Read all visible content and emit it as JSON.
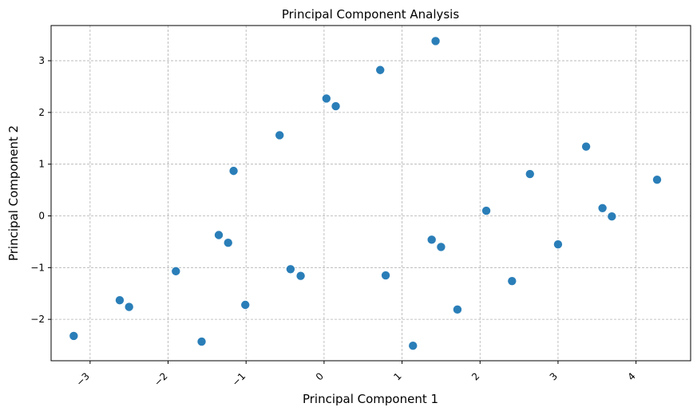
{
  "chart_data": {
    "type": "scatter",
    "title": "Principal Component Analysis",
    "xlabel": "Principal Component 1",
    "ylabel": "Principal Component 2",
    "xlim": [
      -3.5,
      4.7
    ],
    "ylim": [
      -2.8,
      3.68
    ],
    "xticks": [
      -3,
      -2,
      -1,
      0,
      1,
      2,
      3,
      4
    ],
    "xtick_labels": [
      "−3",
      "−2",
      "−1",
      "0",
      "1",
      "2",
      "3",
      "4"
    ],
    "yticks": [
      -2,
      -1,
      0,
      1,
      2,
      3
    ],
    "ytick_labels": [
      "−2",
      "−1",
      "0",
      "1",
      "2",
      "3"
    ],
    "grid": true,
    "color": "#1f77b4",
    "points": [
      {
        "x": -3.21,
        "y": -2.32
      },
      {
        "x": -2.62,
        "y": -1.63
      },
      {
        "x": -2.5,
        "y": -1.76
      },
      {
        "x": -1.9,
        "y": -1.07
      },
      {
        "x": -1.57,
        "y": -2.43
      },
      {
        "x": -1.35,
        "y": -0.37
      },
      {
        "x": -1.23,
        "y": -0.52
      },
      {
        "x": -1.16,
        "y": 0.87
      },
      {
        "x": -1.01,
        "y": -1.72
      },
      {
        "x": -0.57,
        "y": 1.56
      },
      {
        "x": -0.43,
        "y": -1.03
      },
      {
        "x": -0.3,
        "y": -1.16
      },
      {
        "x": 0.03,
        "y": 2.27
      },
      {
        "x": 0.15,
        "y": 2.12
      },
      {
        "x": 0.72,
        "y": 2.82
      },
      {
        "x": 0.79,
        "y": -1.15
      },
      {
        "x": 1.14,
        "y": -2.51
      },
      {
        "x": 1.38,
        "y": -0.46
      },
      {
        "x": 1.43,
        "y": 3.38
      },
      {
        "x": 1.5,
        "y": -0.6
      },
      {
        "x": 1.71,
        "y": -1.81
      },
      {
        "x": 2.08,
        "y": 0.1
      },
      {
        "x": 2.41,
        "y": -1.26
      },
      {
        "x": 2.64,
        "y": 0.81
      },
      {
        "x": 3.0,
        "y": -0.55
      },
      {
        "x": 3.36,
        "y": 1.34
      },
      {
        "x": 3.57,
        "y": 0.15
      },
      {
        "x": 3.69,
        "y": -0.01
      },
      {
        "x": 4.27,
        "y": 0.7
      }
    ]
  }
}
